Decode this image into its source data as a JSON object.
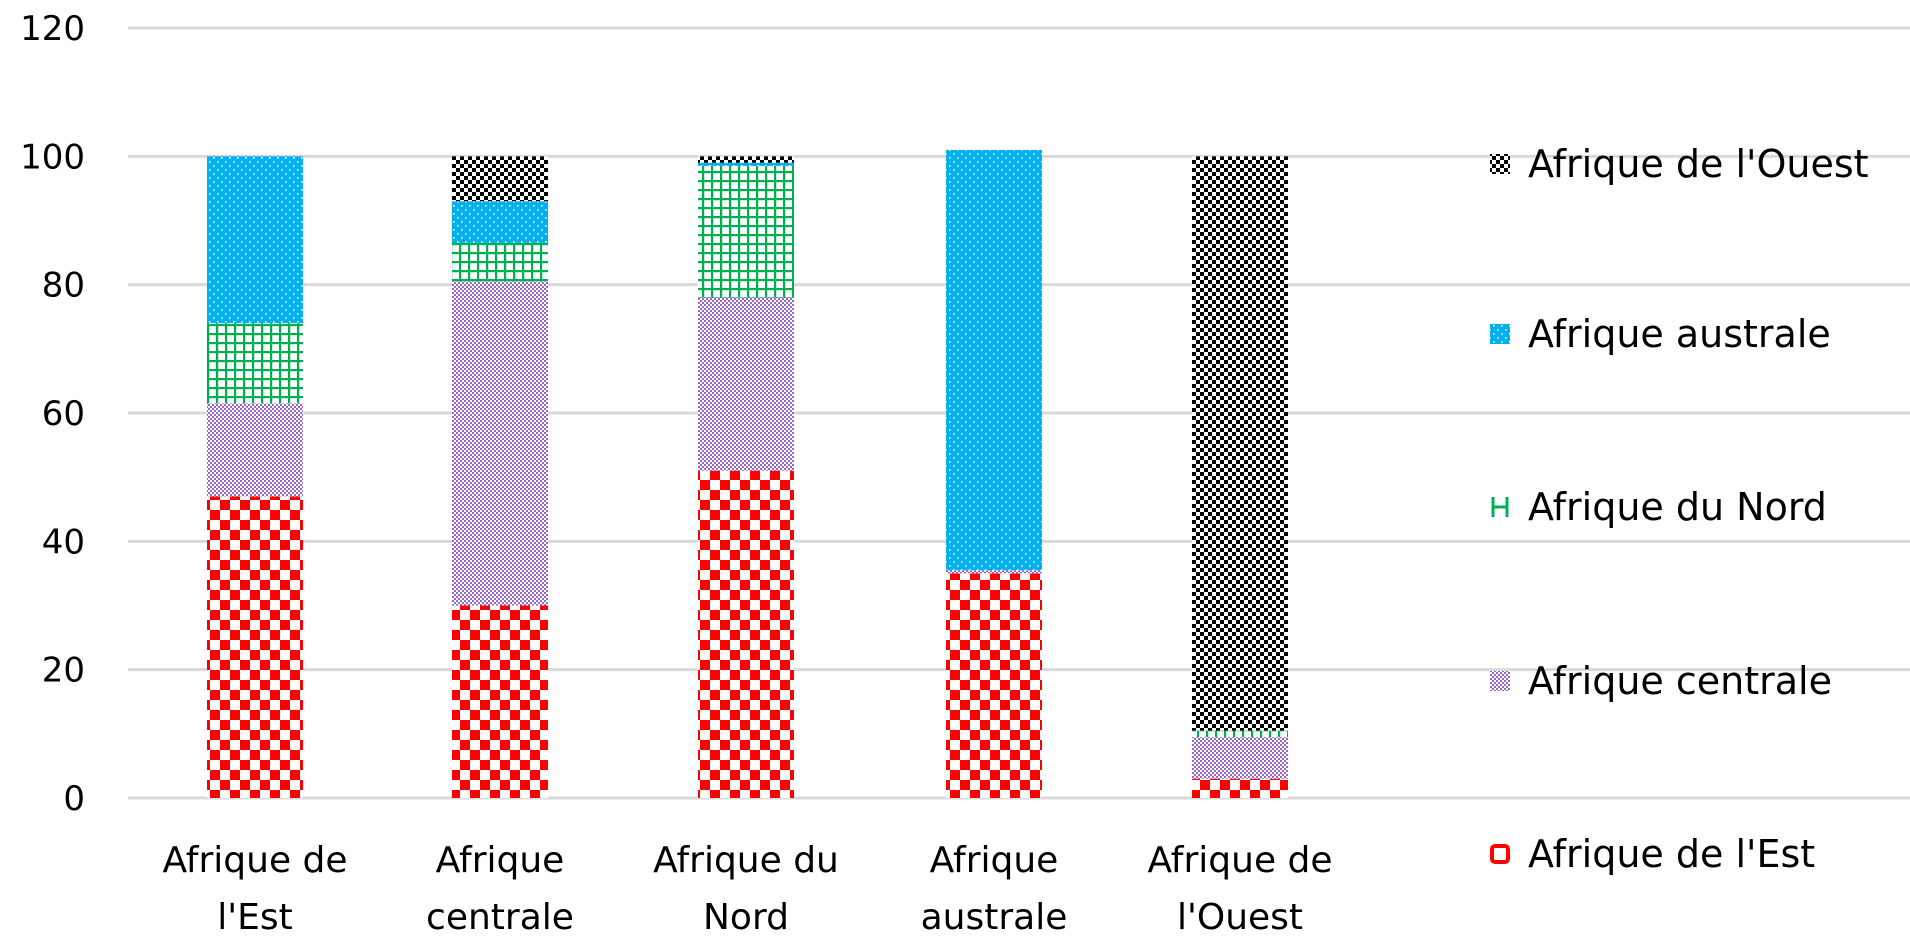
{
  "chart_data": {
    "type": "bar",
    "stacked": true,
    "ylim": [
      0,
      120
    ],
    "y_ticks": [
      0,
      20,
      40,
      60,
      80,
      100,
      120
    ],
    "grid": true,
    "legend_position": "right",
    "categories": [
      [
        "Afrique de",
        "l'Est"
      ],
      [
        "Afrique",
        "centrale"
      ],
      [
        "Afrique du",
        "Nord"
      ],
      [
        "Afrique",
        "australe"
      ],
      [
        "Afrique de",
        "l'Ouest"
      ]
    ],
    "series": [
      {
        "name": "Afrique de l'Est",
        "color": "#ff0000",
        "pattern": "large-checker",
        "values": [
          47,
          30,
          51,
          35,
          3
        ]
      },
      {
        "name": "Afrique centrale",
        "color": "#9966cc",
        "pattern": "fine-checker",
        "values": [
          14.5,
          50.5,
          27,
          0.5,
          6.5
        ]
      },
      {
        "name": "Afrique du Nord",
        "color": "#00b050",
        "pattern": "grid",
        "values": [
          12.5,
          6,
          20.5,
          0,
          1
        ]
      },
      {
        "name": "Afrique australe",
        "color": "#00b0f0",
        "pattern": "dots",
        "values": [
          26,
          6.5,
          0.5,
          65.5,
          0
        ]
      },
      {
        "name": "Afrique de l'Ouest",
        "color": "#000000",
        "pattern": "checker",
        "values": [
          0,
          7,
          1,
          0,
          89.5
        ]
      }
    ]
  }
}
